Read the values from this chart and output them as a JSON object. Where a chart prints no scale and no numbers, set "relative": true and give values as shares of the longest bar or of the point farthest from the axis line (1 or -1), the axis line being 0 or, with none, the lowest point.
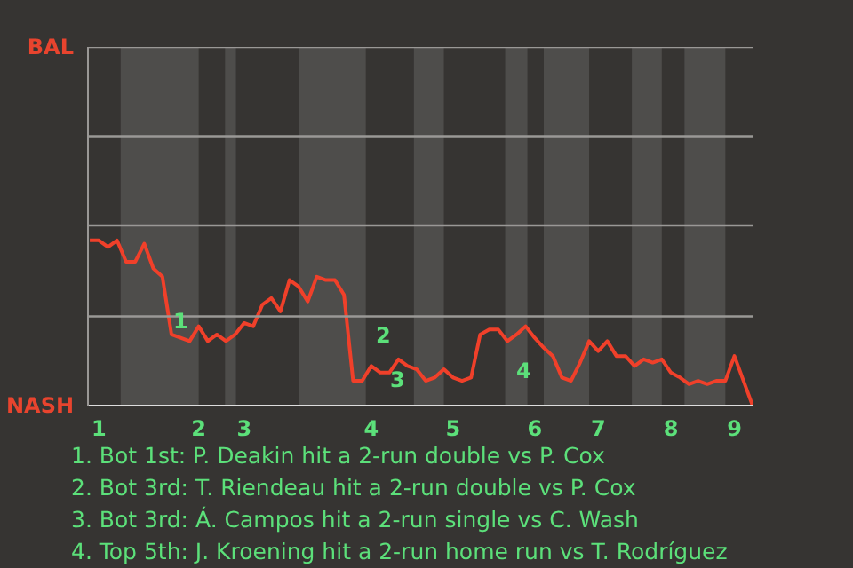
{
  "chart_data": {
    "type": "line",
    "relative": true,
    "categories": [
      null,
      "1",
      null,
      null,
      null,
      null,
      null,
      null,
      null,
      null,
      null,
      null,
      "2",
      null,
      null,
      null,
      null,
      "3",
      null,
      null,
      null,
      null,
      null,
      null,
      null,
      null,
      null,
      null,
      null,
      null,
      null,
      "4",
      null,
      null,
      null,
      null,
      null,
      null,
      null,
      null,
      "5",
      null,
      null,
      null,
      null,
      null,
      null,
      null,
      null,
      "6",
      null,
      null,
      null,
      null,
      null,
      null,
      "7",
      null,
      null,
      null,
      null,
      null,
      null,
      null,
      "8",
      null,
      null,
      null,
      null,
      null,
      null,
      "9",
      null,
      null
    ],
    "series": [
      {
        "color": "#f0402a",
        "values": [
          1.0,
          1.0,
          0.96,
          1.0,
          0.87,
          0.87,
          0.98,
          0.83,
          0.78,
          0.43,
          0.41,
          0.39,
          0.48,
          0.39,
          0.43,
          0.39,
          0.43,
          0.5,
          0.48,
          0.61,
          0.65,
          0.57,
          0.76,
          0.72,
          0.63,
          0.78,
          0.76,
          0.76,
          0.67,
          0.15,
          0.15,
          0.24,
          0.2,
          0.2,
          0.28,
          0.24,
          0.22,
          0.15,
          0.17,
          0.22,
          0.17,
          0.15,
          0.17,
          0.43,
          0.46,
          0.46,
          0.39,
          0.43,
          0.48,
          0.41,
          0.35,
          0.3,
          0.17,
          0.15,
          0.26,
          0.39,
          0.33,
          0.39,
          0.3,
          0.3,
          0.24,
          0.28,
          0.26,
          0.28,
          0.2,
          0.17,
          0.13,
          0.15,
          0.13,
          0.15,
          0.15,
          0.3,
          0.15,
          0
        ]
      }
    ],
    "ref_lines": [
      {
        "axis": "y",
        "value": 0.54,
        "color": "#9a9896"
      },
      {
        "axis": "y",
        "value": 1.09,
        "color": "#9a9896"
      },
      {
        "axis": "y",
        "value": 1.63,
        "color": "#9a9896"
      },
      {
        "axis": "y",
        "value": 2.17,
        "color": "#9a9896"
      }
    ],
    "marker": "none",
    "line_style": "solid",
    "annotations": [
      "BAL",
      "NASH",
      "1",
      "2",
      "3",
      "4",
      "1. Bot 1st: P. Deakin hit a 2-run double vs P. Cox",
      "2. Bot 3rd: T. Riendeau hit a 2-run double vs P. Cox",
      "3. Bot 3rd: Á. Campos hit a 2-run single vs C. Wash",
      "4. Top 5th: J. Kroening hit a 2-run home run vs T. Rodríguez"
    ]
  }
}
